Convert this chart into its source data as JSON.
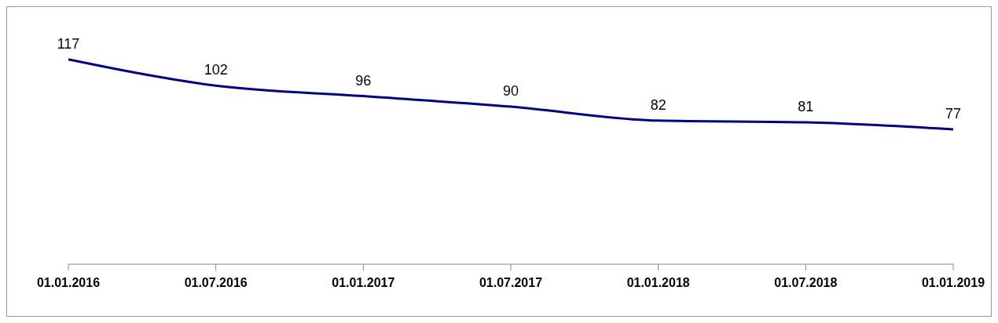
{
  "chart_data": {
    "type": "line",
    "categories": [
      "01.01.2016",
      "01.07.2016",
      "01.01.2017",
      "01.07.2017",
      "01.01.2018",
      "01.07.2018",
      "01.01.2019"
    ],
    "series": [
      {
        "color": "#000080",
        "values": [
          117,
          102,
          96,
          90,
          82,
          81,
          77
        ]
      }
    ],
    "data_labels": true,
    "grid": false,
    "legend": false
  }
}
